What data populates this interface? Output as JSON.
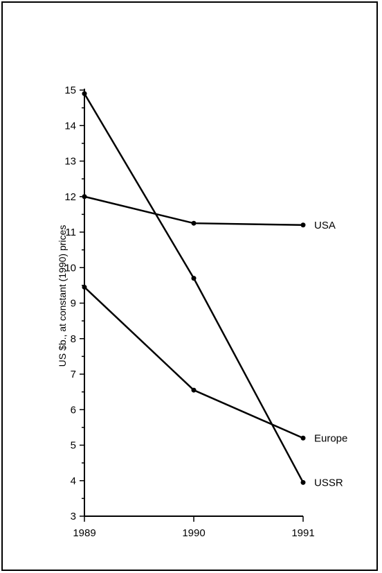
{
  "chart_data": {
    "type": "line",
    "title": "",
    "xlabel": "",
    "ylabel": "US $b., at constant (1990) prices",
    "x": [
      "1989",
      "1990",
      "1991"
    ],
    "ylim": [
      3,
      15
    ],
    "yticks": [
      "3",
      "4",
      "5",
      "6",
      "7",
      "8",
      "9",
      "10",
      "11",
      "12",
      "13",
      "14",
      "15"
    ],
    "grid": false,
    "legend": "direct labels at line ends (right)",
    "series": [
      {
        "name": "USA",
        "values": [
          12.0,
          11.25,
          11.2
        ]
      },
      {
        "name": "Europe",
        "values": [
          9.45,
          6.55,
          5.2
        ]
      },
      {
        "name": "USSR",
        "values": [
          14.9,
          9.7,
          3.95
        ]
      }
    ],
    "colors": {
      "line": "#000000",
      "background": "#ffffff"
    }
  }
}
